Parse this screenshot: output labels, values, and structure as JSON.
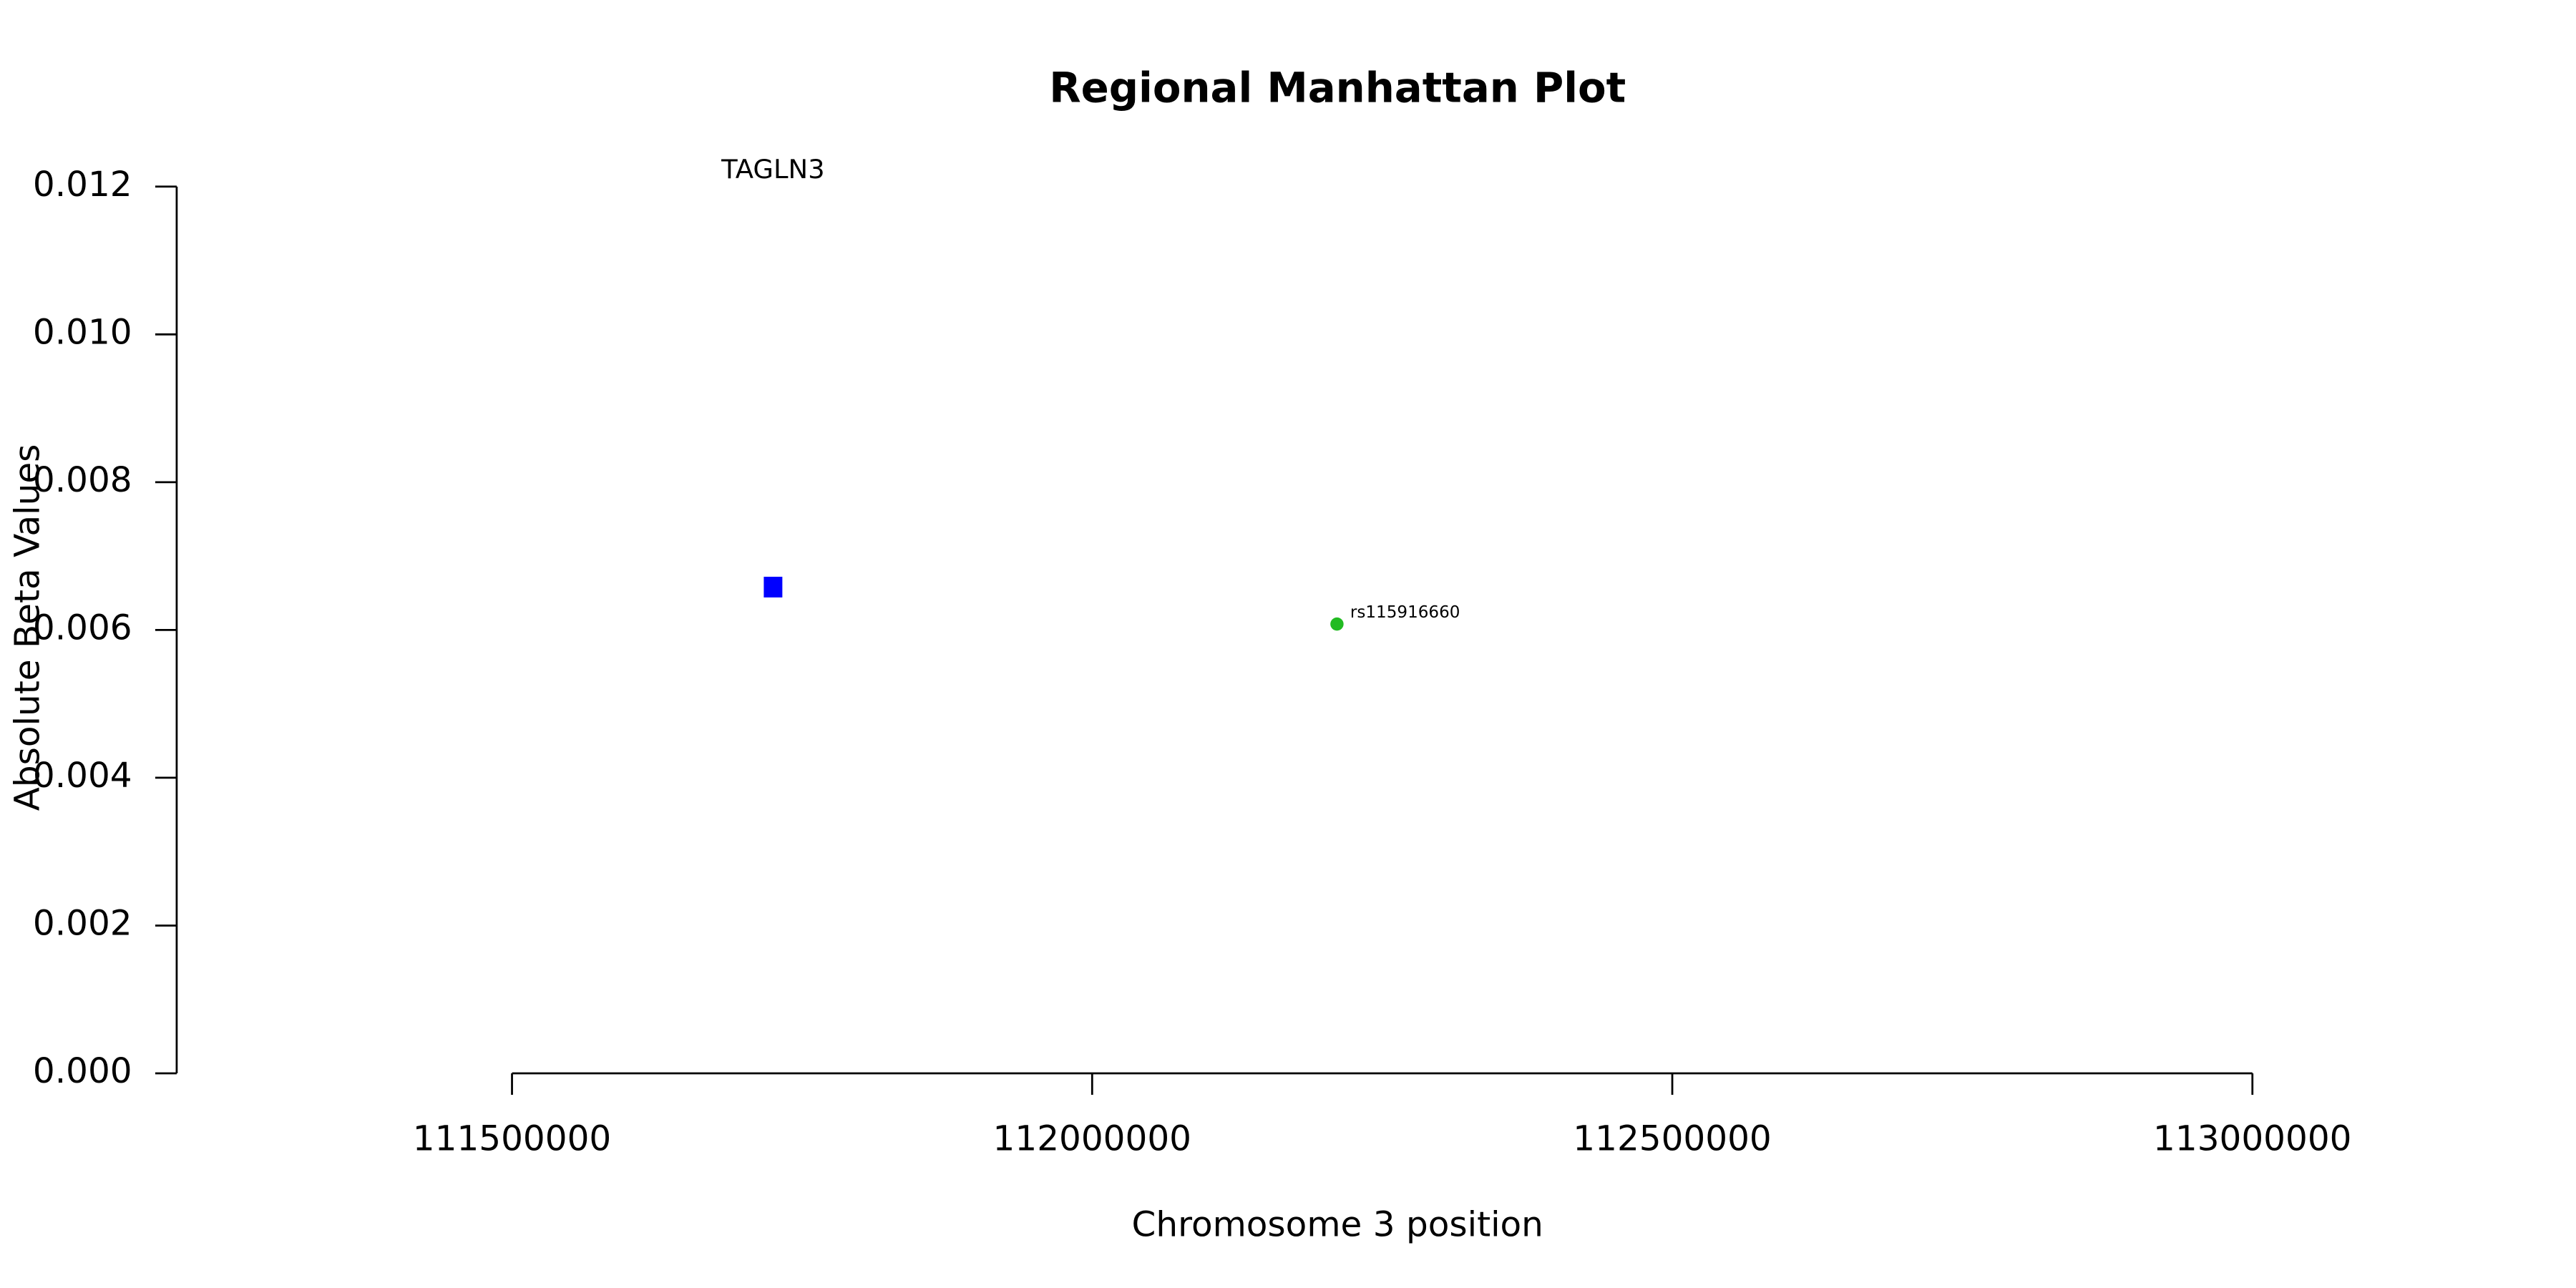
{
  "chart_data": {
    "type": "scatter",
    "title": "Regional Manhattan Plot",
    "x_label": "Chromosome 3 position",
    "y_label": "Absolute Beta Values",
    "xlim": [
      111211000,
      113193500
    ],
    "ylim": [
      0,
      0.012
    ],
    "xticks": [
      111500000,
      112000000,
      112500000,
      113000000
    ],
    "yticks": [
      {
        "value": 0,
        "label": "0.000"
      },
      {
        "value": 0.002,
        "label": "0.002"
      },
      {
        "value": 0.004,
        "label": "0.004"
      },
      {
        "value": 0.006,
        "label": "0.006"
      },
      {
        "value": 0.008,
        "label": "0.008"
      },
      {
        "value": 0.01,
        "label": "0.010"
      },
      {
        "value": 0.012,
        "label": "0.012"
      }
    ],
    "genes": [
      {
        "name": "TAGLN3",
        "color": "#0000ff",
        "start": 111717000,
        "end": 111733000,
        "ymin": 0.00644,
        "ymax": 0.00672
      }
    ],
    "series": [
      {
        "color": "#22bb22",
        "x": [
          112211000
        ],
        "values": [
          0.00608
        ],
        "labels": [
          "rs115916660"
        ]
      }
    ]
  }
}
